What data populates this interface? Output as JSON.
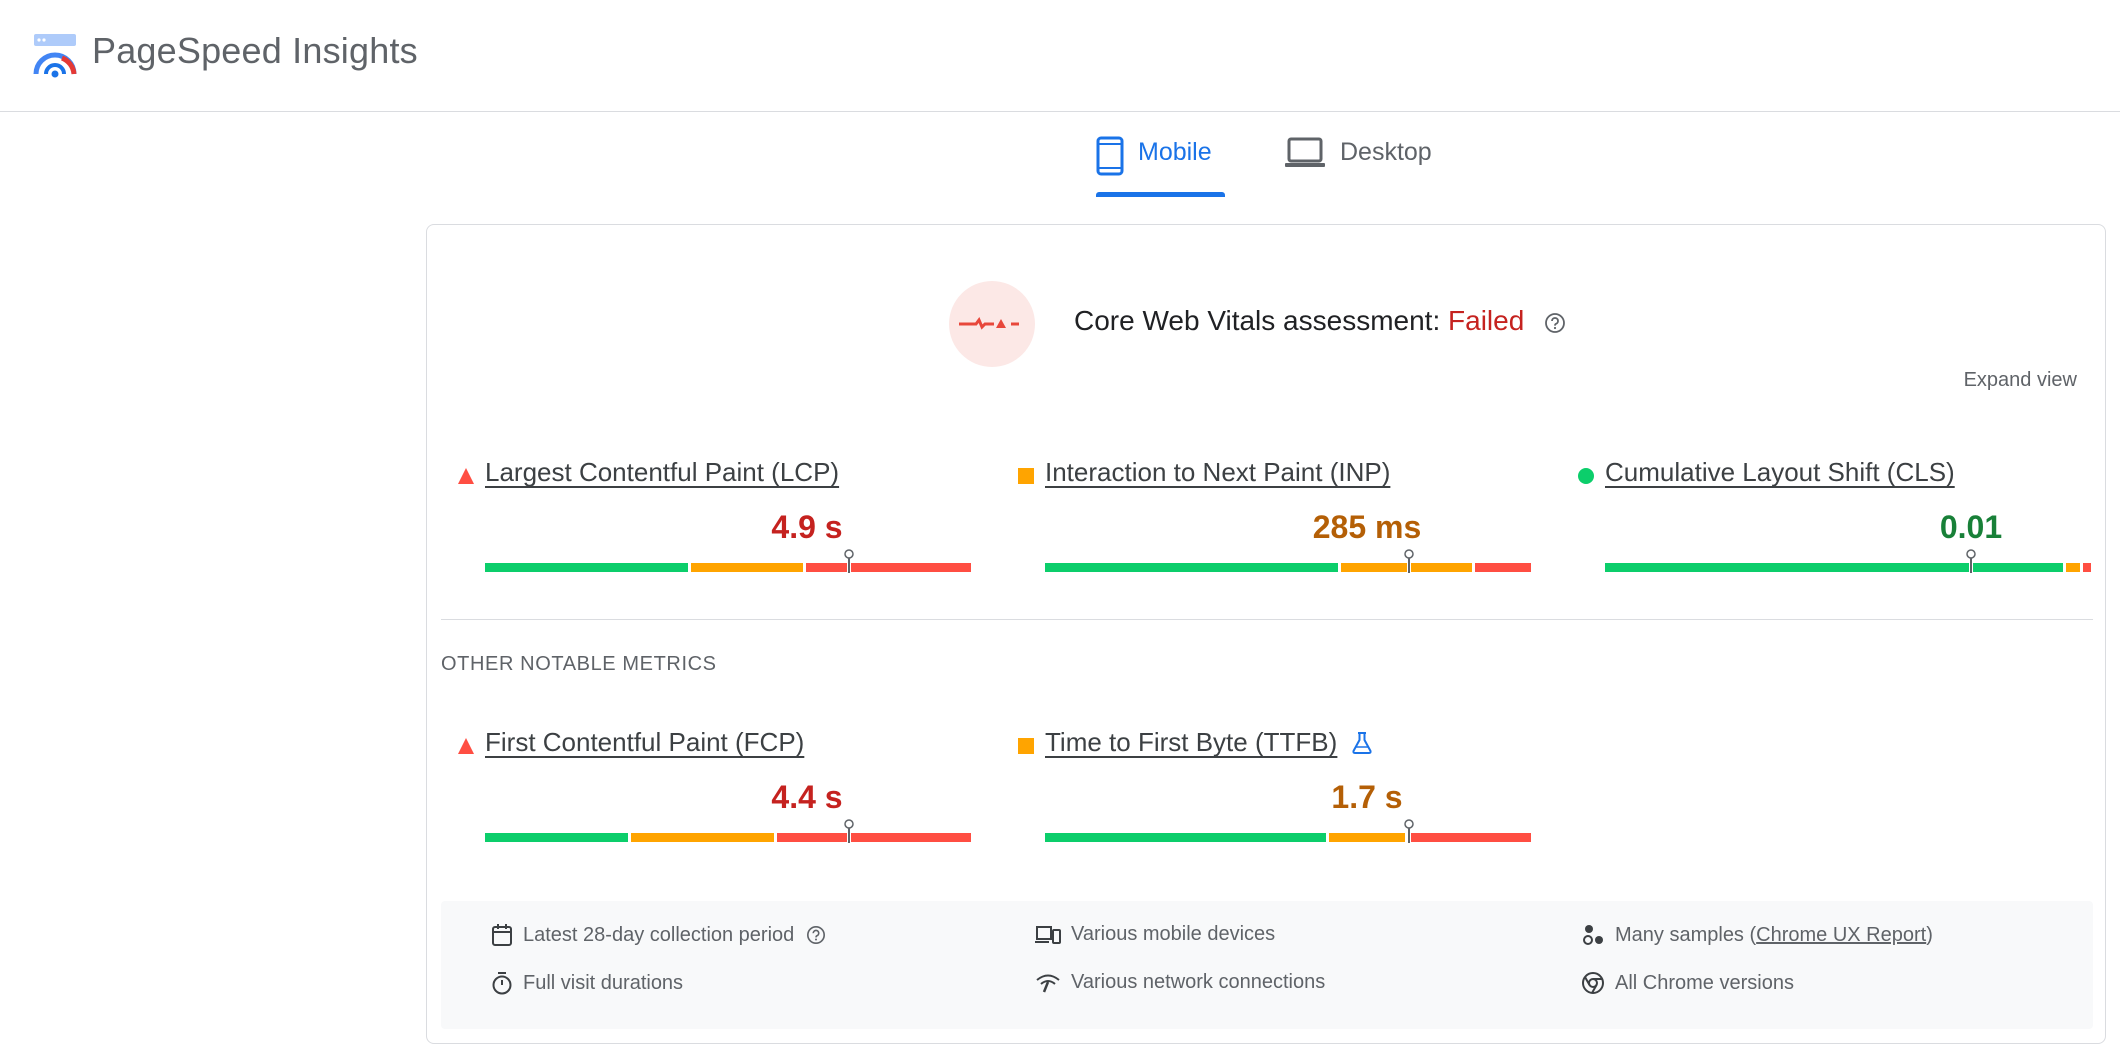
{
  "header": {
    "title": "PageSpeed Insights"
  },
  "tabs": [
    {
      "label": "Mobile",
      "selected": true,
      "icon": "phone-icon"
    },
    {
      "label": "Desktop",
      "selected": false,
      "icon": "laptop-icon"
    }
  ],
  "assessment": {
    "prefix": "Core Web Vitals assessment:",
    "status": "Failed",
    "status_color": "#c5221f",
    "expand_label": "Expand view"
  },
  "core_metrics": [
    {
      "name": "Largest Contentful Paint (LCP)",
      "value": "4.9 s",
      "rating": "poor",
      "color": "#c5221f",
      "icon": "triangle-icon"
    },
    {
      "name": "Interaction to Next Paint (INP)",
      "value": "285 ms",
      "rating": "needs-improvement",
      "color": "#b45f06",
      "icon": "square-icon"
    },
    {
      "name": "Cumulative Layout Shift (CLS)",
      "value": "0.01",
      "rating": "good",
      "color": "#188038",
      "icon": "circle-icon"
    }
  ],
  "other_section_label": "OTHER NOTABLE METRICS",
  "other_metrics": [
    {
      "name": "First Contentful Paint (FCP)",
      "value": "4.4 s",
      "rating": "poor",
      "color": "#c5221f",
      "icon": "triangle-icon"
    },
    {
      "name": "Time to First Byte (TTFB)",
      "value": "1.7 s",
      "rating": "needs-improvement",
      "color": "#b45f06",
      "icon": "square-icon",
      "experimental_icon": "flask-icon"
    }
  ],
  "footer": {
    "collection_period": "Latest 28-day collection period",
    "devices": "Various mobile devices",
    "samples_prefix": "Many samples (",
    "samples_link": "Chrome UX Report",
    "samples_suffix": ")",
    "visit_durations": "Full visit durations",
    "network": "Various network connections",
    "chrome_versions": "All Chrome versions"
  },
  "colors": {
    "good": "#0cce6b",
    "average": "#ffa400",
    "poor": "#ff4e42",
    "accent": "#1a73e8"
  }
}
